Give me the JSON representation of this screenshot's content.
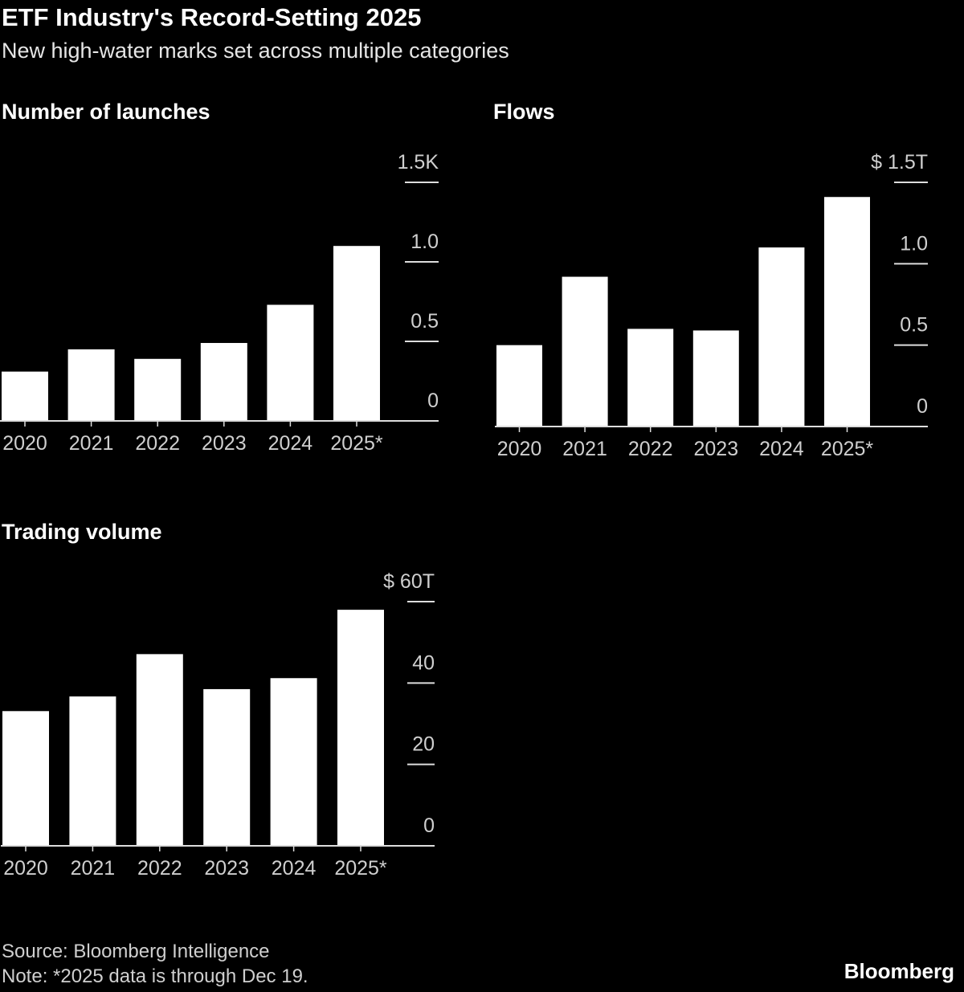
{
  "title": "ETF Industry's Record-Setting 2025",
  "subtitle": "New high-water marks set across multiple categories",
  "chart_data": [
    {
      "type": "bar",
      "title": "Number of launches",
      "color": "#ffffff",
      "categories": [
        "2020",
        "2021",
        "2022",
        "2023",
        "2024",
        "2025*"
      ],
      "values": [
        0.31,
        0.45,
        0.39,
        0.49,
        0.73,
        1.1
      ],
      "ylim": [
        0,
        1.5
      ],
      "yticks": [
        0,
        0.5,
        {
          "value": 1,
          "label": "1.0"
        },
        {
          "value": 1.5,
          "label": "1.5K"
        }
      ]
    },
    {
      "type": "bar",
      "title": "Flows",
      "color": "#ffffff",
      "categories": [
        "2020",
        "2021",
        "2022",
        "2023",
        "2024",
        "2025*"
      ],
      "values": [
        0.5,
        0.92,
        0.6,
        0.59,
        1.1,
        1.41
      ],
      "ylim": [
        0,
        1.5
      ],
      "yticks": [
        0,
        0.5,
        {
          "value": 1,
          "label": "1.0"
        },
        {
          "value": 1.5,
          "label": "$ 1.5T"
        }
      ]
    },
    {
      "type": "bar",
      "title": "Trading volume",
      "color": "#ffffff",
      "categories": [
        "2020",
        "2021",
        "2022",
        "2023",
        "2024",
        "2025*"
      ],
      "values": [
        33.1,
        36.7,
        47.1,
        38.5,
        41.2,
        58.0
      ],
      "ylim": [
        0,
        60
      ],
      "yticks": [
        0,
        20,
        40,
        {
          "value": 60,
          "label": "$ 60T"
        }
      ]
    }
  ],
  "source": "Source: Bloomberg Intelligence",
  "note": "Note: *2025 data is through Dec 19.",
  "logo": "Bloomberg"
}
